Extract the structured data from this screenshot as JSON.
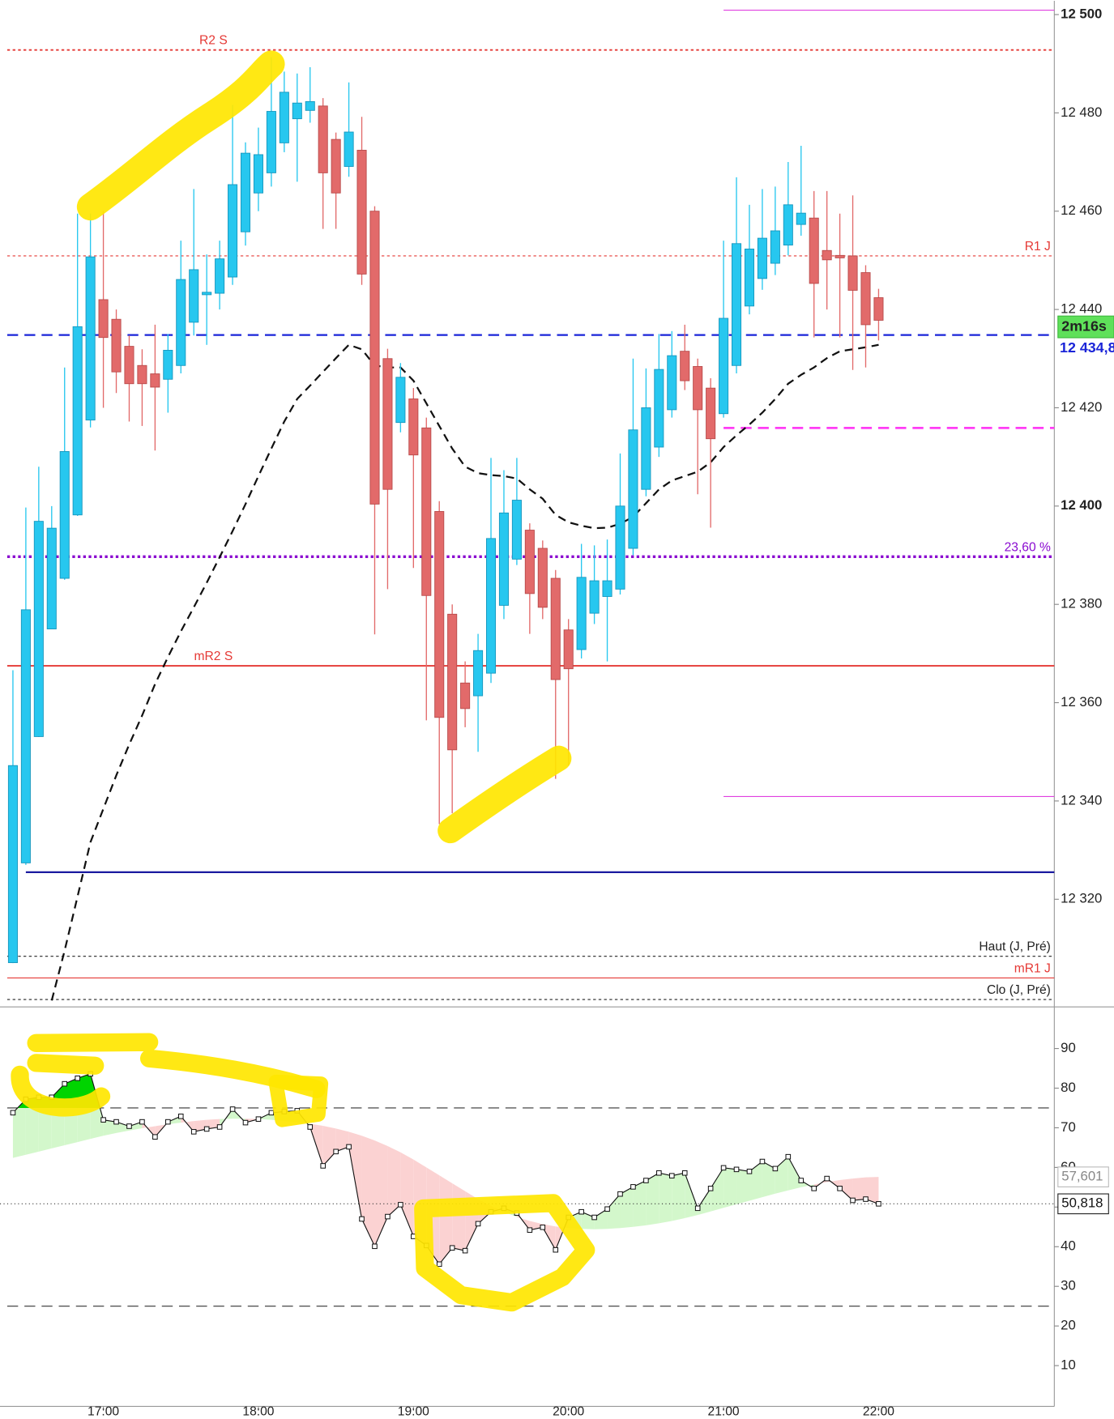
{
  "chart_data": [
    {
      "type": "candlestick",
      "x": [
        "16:25",
        "16:30",
        "16:35",
        "16:40",
        "16:45",
        "16:50",
        "16:55",
        "17:00",
        "17:05",
        "17:10",
        "17:15",
        "17:20",
        "17:25",
        "17:30",
        "17:35",
        "17:40",
        "17:45",
        "17:50",
        "17:55",
        "18:00",
        "18:05",
        "18:10",
        "18:15",
        "18:20",
        "18:25",
        "18:30",
        "18:35",
        "18:40",
        "18:45",
        "18:50",
        "18:55",
        "19:00",
        "19:05",
        "19:10",
        "19:15",
        "19:20",
        "19:25",
        "19:30",
        "19:35",
        "19:40",
        "19:45",
        "19:50",
        "19:55",
        "20:00",
        "20:05",
        "20:10",
        "20:15",
        "20:20",
        "20:25",
        "20:30",
        "20:35",
        "20:40",
        "20:45",
        "20:50",
        "20:55",
        "21:00",
        "21:05",
        "21:10",
        "21:15",
        "21:20",
        "21:25",
        "21:30",
        "21:35",
        "21:40",
        "21:45",
        "21:50",
        "21:55",
        "22:00"
      ],
      "open": [
        12307.1,
        12327.4,
        12353.1,
        12375,
        12385.3,
        12398.2,
        12417.5,
        12442,
        12438,
        12432.5,
        12428.6,
        12426.9,
        12425.8,
        12428.6,
        12437.4,
        12443,
        12443.3,
        12446.6,
        12455.8,
        12463.7,
        12467.8,
        12473.9,
        12478.8,
        12480.5,
        12481.4,
        12474.6,
        12469.1,
        12472.4,
        12460,
        12430,
        12417,
        12421.8,
        12415.9,
        12398.9,
        12378,
        12364,
        12361.4,
        12366,
        12379.8,
        12389.2,
        12395.1,
        12391.4,
        12385.3,
        12374.8,
        12370.8,
        12378.2,
        12381.6,
        12383.1,
        12391.4,
        12403.4,
        12412,
        12419.6,
        12431.5,
        12428.4,
        12424,
        12418.8,
        12428.6,
        12440.7,
        12446.3,
        12449.4,
        12453.1,
        12457.3,
        12458.6,
        12452,
        12451,
        12450.9,
        12447.5,
        12442.4
      ],
      "high": [
        12366.6,
        12399.7,
        12408,
        12400,
        12428.2,
        12459.5,
        12459.5,
        12460,
        12440,
        12434.7,
        12431.9,
        12436.9,
        12435,
        12454,
        12464.5,
        12451.2,
        12454,
        12481.6,
        12474,
        12477,
        12491.3,
        12488.4,
        12488,
        12489.3,
        12483,
        12476,
        12486.2,
        12479.2,
        12461,
        12432,
        12429.1,
        12424,
        12418,
        12401,
        12380,
        12368.4,
        12374,
        12409.8,
        12407.3,
        12409.8,
        12396.5,
        12393,
        12387,
        12377,
        12392.3,
        12392,
        12393.2,
        12410.7,
        12430,
        12428,
        12435,
        12435.6,
        12436.9,
        12430,
        12426,
        12454,
        12466.9,
        12461.3,
        12464.5,
        12465,
        12470,
        12473.3,
        12464.1,
        12464.1,
        12459.5,
        12463.2,
        12449,
        12444.2
      ],
      "low": [
        12307,
        12327,
        12353,
        12375,
        12385,
        12398,
        12416,
        12420,
        12423,
        12417.2,
        12416.3,
        12411.3,
        12419,
        12427,
        12434.7,
        12432.8,
        12440,
        12445,
        12453,
        12460,
        12465,
        12472,
        12466,
        12478,
        12456.4,
        12456.4,
        12467,
        12445,
        12373.9,
        12383.1,
        12415,
        12387.4,
        12356.4,
        12335.3,
        12337.5,
        12355,
        12350,
        12364,
        12377,
        12388,
        12374,
        12377,
        12344.5,
        12347.2,
        12369,
        12376,
        12368.4,
        12382,
        12390,
        12402,
        12410,
        12418,
        12423.6,
        12402.4,
        12395.6,
        12418,
        12427,
        12439,
        12444,
        12447,
        12451,
        12455,
        12434.3,
        12440,
        12434.3,
        12427.7,
        12428.2,
        12433.7
      ],
      "close": [
        12347.2,
        12378.9,
        12396.9,
        12395.5,
        12411.1,
        12436.5,
        12450.7,
        12434.3,
        12427.3,
        12424.9,
        12424.9,
        12424.2,
        12431.7,
        12446.1,
        12448.1,
        12443.5,
        12450.3,
        12465.4,
        12471.8,
        12471.5,
        12480.3,
        12484.2,
        12482,
        12482.3,
        12467.8,
        12463.7,
        12476.1,
        12447.2,
        12400.4,
        12403.4,
        12426.2,
        12410.4,
        12381.8,
        12357,
        12350.4,
        12358.8,
        12370.6,
        12393.4,
        12398.6,
        12401.2,
        12382.2,
        12379.4,
        12364.7,
        12366.9,
        12385.5,
        12384.8,
        12384.8,
        12400,
        12415.5,
        12420,
        12427.8,
        12430.6,
        12425.5,
        12419.6,
        12413.7,
        12438.2,
        12453.4,
        12452.3,
        12454.5,
        12456,
        12461.3,
        12459.6,
        12445.3,
        12450.1,
        12450.5,
        12443.9,
        12436.9,
        12437.8
      ],
      "up_color": "#27c7ef",
      "down_color": "#e26a6a",
      "ma": {
        "color": "#111111",
        "values": [
          null,
          null,
          null,
          12299.4,
          12309.5,
          12320.5,
          12331.6,
          12338.4,
          12345.2,
          12351.5,
          12357.4,
          12363.8,
          12369.3,
          12374.5,
          12379.4,
          12384.4,
          12389.6,
          12394.9,
          12400.4,
          12406.1,
          12411.7,
          12417.2,
          12421.8,
          12424.5,
          12427.3,
          12430.1,
          12432.8,
          12431.9,
          12428.6,
          12428.2,
          12428.2,
          12425.5,
          12420.9,
          12416.3,
          12411.7,
          12408,
          12406.7,
          12406.3,
          12406.1,
          12405.6,
          12403.4,
          12401.5,
          12398.2,
          12396.7,
          12396,
          12395.5,
          12395.6,
          12396.4,
          12397.8,
          12400.6,
          12403.4,
          12405.2,
          12406.1,
          12407,
          12408.9,
          12412,
          12414.4,
          12416.6,
          12419,
          12421.8,
          12424.9,
          12426.7,
          12428.2,
          12430.1,
          12431.5,
          12431.9,
          12432.3,
          12432.8
        ]
      },
      "levels": [
        {
          "label": "R2 S",
          "value": 12492.8,
          "color": "#e53935",
          "style": "dotted"
        },
        {
          "value": 12500.9,
          "color": "#e040e0",
          "style": "solid",
          "from": "21:00"
        },
        {
          "label": "R1 J",
          "value": 12450.9,
          "color": "#e53935",
          "style": "dotted"
        },
        {
          "value": 12434.8,
          "axis_label": "12 434,8",
          "color": "#1a24d8",
          "style": "dashed"
        },
        {
          "value": 12415.9,
          "color": "#ff3df5",
          "style": "dashed",
          "from": "21:00"
        },
        {
          "label": "23,60 %",
          "value": 12389.7,
          "color": "#8a0ad0",
          "style": "dotted"
        },
        {
          "label": "mR2 S",
          "value": 12367.5,
          "color": "#e53935",
          "style": "solid"
        },
        {
          "value": 12340.9,
          "color": "#e040e0",
          "style": "solid",
          "from": "21:00"
        },
        {
          "value": 12325.5,
          "color": "#1a1aa0",
          "style": "solid",
          "from": "16:30"
        },
        {
          "label": "Haut (J, Pré)",
          "value": 12308.4,
          "color": "#222222",
          "style": "dotted"
        },
        {
          "label": "mR1 J",
          "value": 12304,
          "color": "#e53935",
          "style": "solid"
        },
        {
          "label": "Clo (J, Pré)",
          "value": 12299.6,
          "color": "#222222",
          "style": "dotted"
        }
      ],
      "countdown": "2m16s",
      "xlim": [
        "16:20",
        "23:08"
      ],
      "xticks": [
        "17:00",
        "18:00",
        "19:00",
        "20:00",
        "21:00",
        "22:00"
      ],
      "ylim": [
        12298.1,
        12502.8
      ],
      "yticks": [
        {
          "value": 12320,
          "label": "12 320"
        },
        {
          "value": 12340,
          "label": "12 340"
        },
        {
          "value": 12360,
          "label": "12 360"
        },
        {
          "value": 12380,
          "label": "12 380"
        },
        {
          "value": 12400,
          "label": "12 400"
        },
        {
          "value": 12420,
          "label": "12 420"
        },
        {
          "value": 12440,
          "label": "12 440"
        },
        {
          "value": 12460,
          "label": "12 460"
        },
        {
          "value": 12480,
          "label": "12 480"
        },
        {
          "value": 12500,
          "label": "12 500"
        }
      ]
    },
    {
      "type": "line",
      "series": [
        {
          "color": "#111111",
          "last_label": "50,818",
          "values": [
            73.8,
            77.2,
            77.7,
            77.7,
            81.1,
            82.5,
            83.6,
            72,
            71.5,
            70.4,
            71.5,
            67.7,
            71.5,
            72.9,
            69,
            69.7,
            70.2,
            74.7,
            71.3,
            72.2,
            73.8,
            74.1,
            74.3,
            70.2,
            60.4,
            64,
            65.2,
            47,
            40.1,
            47.6,
            50.6,
            42.6,
            40.3,
            35.6,
            39.7,
            39,
            45.8,
            48.8,
            49.7,
            48.5,
            44.2,
            44.9,
            39.2,
            47.4,
            48.8,
            47.4,
            49.5,
            53.3,
            55.1,
            56.7,
            58.6,
            57.9,
            58.6,
            49.7,
            54.7,
            59.9,
            59.5,
            59,
            61.5,
            59.7,
            62.7,
            56.7,
            54.7,
            57.2,
            54.7,
            51.7,
            52,
            50.818
          ]
        },
        {
          "color": "#f4a8a8",
          "last_label": "57,601",
          "values": [
            62.4,
            63.2,
            64,
            64.8,
            65.6,
            66.4,
            67.2,
            68,
            68.7,
            69.3,
            69.9,
            70.4,
            70.9,
            71.3,
            71.7,
            72,
            72.2,
            72.3,
            72.3,
            72.2,
            72,
            71.7,
            71.4,
            71,
            70.5,
            69.8,
            69,
            68,
            66.8,
            65.4,
            63.8,
            62,
            60,
            58,
            56,
            54,
            52,
            50.3,
            48.8,
            47.5,
            46.5,
            45.7,
            45.1,
            44.7,
            44.5,
            44.4,
            44.5,
            44.7,
            45,
            45.4,
            45.9,
            46.5,
            47.2,
            48,
            48.9,
            49.8,
            50.7,
            51.6,
            52.5,
            53.4,
            54.2,
            55,
            55.7,
            56.3,
            56.8,
            57.2,
            57.5,
            57.601
          ]
        }
      ],
      "up_fill": "#d3f7cb",
      "down_fill": "#fbd2d2",
      "overbought_fill": "#00d400",
      "bands": [
        25,
        75
      ],
      "ylim": [
        -0.3,
        100.5
      ],
      "yticks": [
        10,
        20,
        30,
        40,
        50,
        60,
        70,
        80,
        90
      ]
    }
  ]
}
